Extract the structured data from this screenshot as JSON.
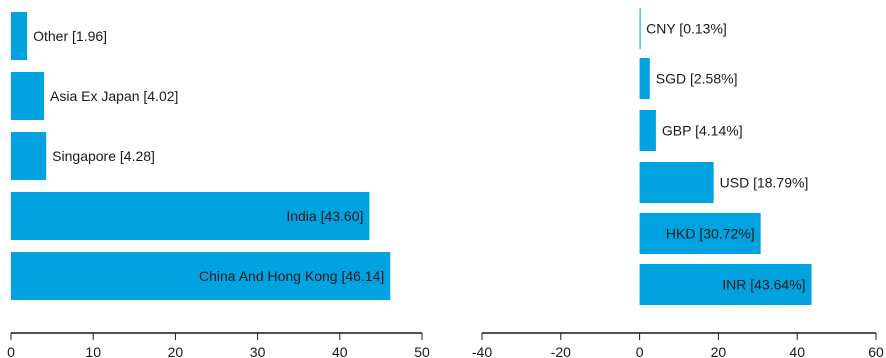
{
  "colors": {
    "bar": "#00a3e0",
    "axis": "#1a1a1a",
    "text": "#1a1a1a"
  },
  "chart_data": [
    {
      "type": "bar",
      "orientation": "horizontal",
      "categories": [
        "Other",
        "Asia Ex Japan",
        "Singapore",
        "India",
        "China And Hong Kong"
      ],
      "values": [
        1.96,
        4.02,
        4.28,
        43.6,
        46.14
      ],
      "bar_labels": [
        "Other [1.96]",
        "Asia Ex Japan [4.02]",
        "Singapore [4.28]",
        "India [43.60]",
        "China And Hong Kong [46.14]"
      ],
      "xlim": [
        0,
        50
      ],
      "xticks": [
        0,
        10,
        20,
        30,
        40,
        50
      ],
      "xtick_labels": [
        "0",
        "10",
        "20",
        "30",
        "40",
        "50"
      ],
      "grid": false
    },
    {
      "type": "bar",
      "orientation": "horizontal",
      "categories": [
        "CNY",
        "SGD",
        "GBP",
        "USD",
        "HKD",
        "INR"
      ],
      "values": [
        0.13,
        2.58,
        4.14,
        18.79,
        30.72,
        43.64
      ],
      "bar_labels": [
        "CNY [0.13%]",
        "SGD [2.58%]",
        "GBP [4.14%]",
        "USD [18.79%]",
        "HKD [30.72%]",
        "INR [43.64%]"
      ],
      "xlim": [
        -40,
        60
      ],
      "xticks": [
        -40,
        -20,
        0,
        20,
        40,
        60
      ],
      "xtick_labels": [
        "-40",
        "-20",
        "0",
        "20",
        "40",
        "60"
      ],
      "grid": false
    }
  ]
}
